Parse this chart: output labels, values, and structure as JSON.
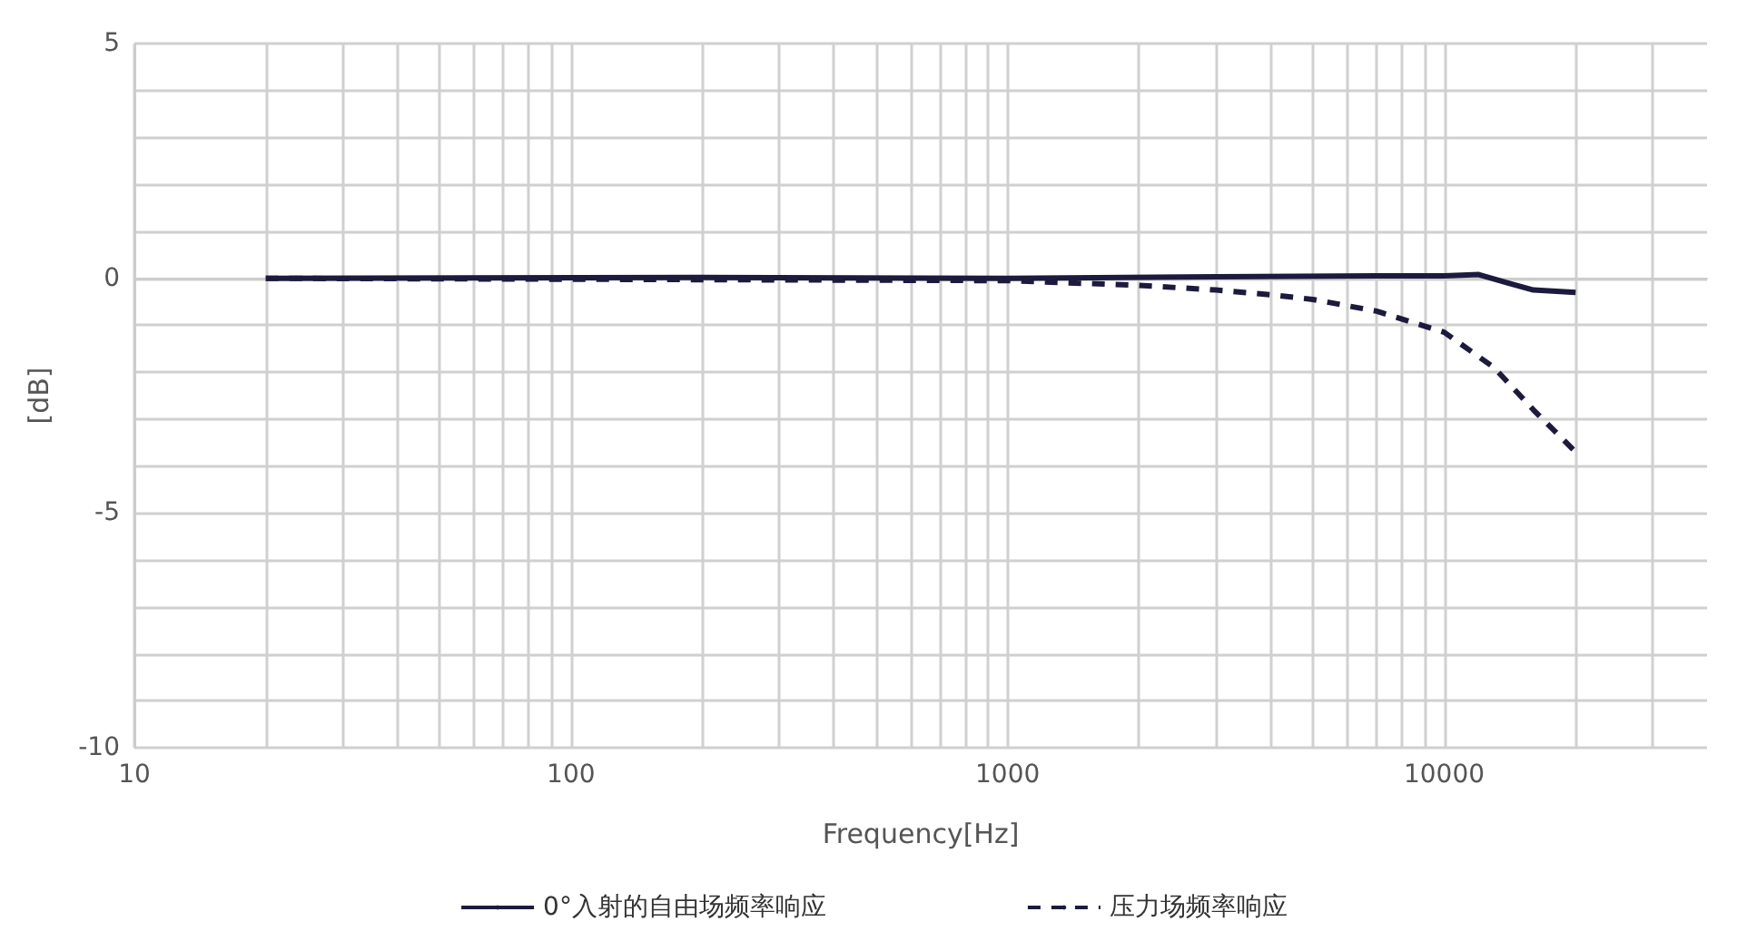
{
  "chart_data": {
    "type": "line",
    "xlabel": "Frequency[Hz]",
    "ylabel": "[dB]",
    "log": "x",
    "xlim": [
      10,
      40000
    ],
    "xticks": [
      10,
      {
        "value": 20,
        "label": null
      },
      {
        "value": 30,
        "label": null
      },
      {
        "value": 40,
        "label": null
      },
      {
        "value": 50,
        "label": null
      },
      {
        "value": 60,
        "label": null
      },
      {
        "value": 70,
        "label": null
      },
      {
        "value": 80,
        "label": null
      },
      {
        "value": 90,
        "label": null
      },
      100,
      {
        "value": 200,
        "label": null
      },
      {
        "value": 300,
        "label": null
      },
      {
        "value": 400,
        "label": null
      },
      {
        "value": 500,
        "label": null
      },
      {
        "value": 600,
        "label": null
      },
      {
        "value": 700,
        "label": null
      },
      {
        "value": 800,
        "label": null
      },
      {
        "value": 900,
        "label": null
      },
      1000,
      {
        "value": 2000,
        "label": null
      },
      {
        "value": 3000,
        "label": null
      },
      {
        "value": 4000,
        "label": null
      },
      {
        "value": 5000,
        "label": null
      },
      {
        "value": 6000,
        "label": null
      },
      {
        "value": 7000,
        "label": null
      },
      {
        "value": 8000,
        "label": null
      },
      {
        "value": 9000,
        "label": null
      },
      10000,
      {
        "value": 20000,
        "label": null
      },
      {
        "value": 30000,
        "label": null
      }
    ],
    "ylim": [
      -10,
      5
    ],
    "yticks": [
      -10,
      {
        "value": -9,
        "label": null
      },
      {
        "value": -8,
        "label": null
      },
      {
        "value": -7,
        "label": null
      },
      {
        "value": -6,
        "label": null
      },
      -5,
      {
        "value": -4,
        "label": null
      },
      {
        "value": -3,
        "label": null
      },
      {
        "value": -2,
        "label": null
      },
      {
        "value": -1,
        "label": null
      },
      0,
      {
        "value": 1,
        "label": null
      },
      {
        "value": 2,
        "label": null
      },
      {
        "value": 3,
        "label": null
      },
      {
        "value": 4,
        "label": null
      },
      5
    ],
    "grid": true,
    "legend": "bottom",
    "marker": "none",
    "series": [
      {
        "name": "0°入射的自由场频率响应",
        "color": "#1c1b3e",
        "line_style": "solid",
        "x": [
          20,
          200,
          1000,
          3000,
          7000,
          10000,
          12000,
          14000,
          16000,
          20000
        ],
        "values": [
          0,
          0.02,
          0,
          0.03,
          0.05,
          0.05,
          0.08,
          -0.1,
          -0.25,
          -0.3
        ]
      },
      {
        "name": "压力场频率响应",
        "color": "#1c1b3e",
        "line_style": "dashed",
        "x": [
          20,
          1000,
          2000,
          3000,
          4000,
          5000,
          7000,
          10000,
          13000,
          16000,
          20000
        ],
        "values": [
          0,
          -0.05,
          -0.15,
          -0.25,
          -0.35,
          -0.45,
          -0.7,
          -1.15,
          -1.9,
          -2.8,
          -3.7
        ]
      }
    ]
  }
}
